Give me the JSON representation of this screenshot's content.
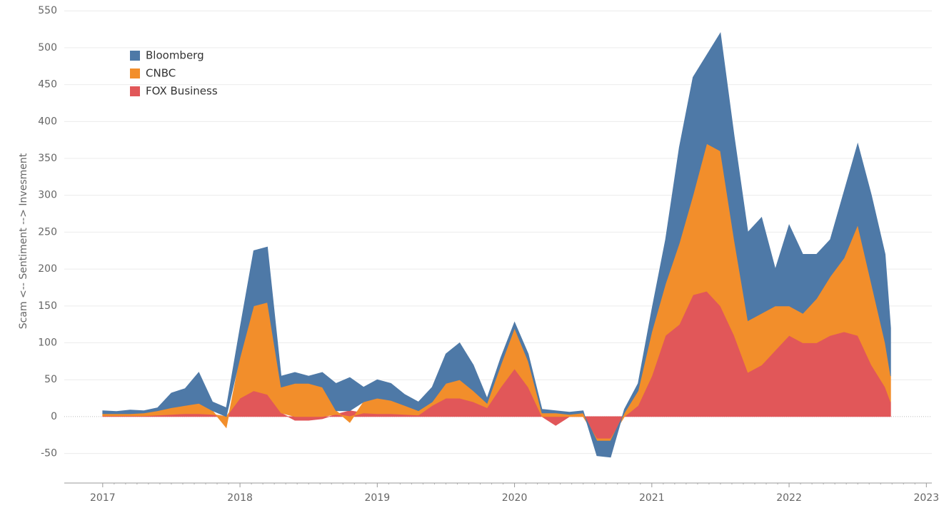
{
  "chart_data": {
    "type": "stacked_area",
    "y_label": "Scam <-- Sentiment --> Invesment",
    "x": [
      2017.0,
      2017.1,
      2017.2,
      2017.3,
      2017.4,
      2017.5,
      2017.6,
      2017.7,
      2017.8,
      2017.9,
      2018.0,
      2018.1,
      2018.2,
      2018.3,
      2018.4,
      2018.5,
      2018.6,
      2018.7,
      2018.8,
      2018.9,
      2019.0,
      2019.1,
      2019.2,
      2019.3,
      2019.4,
      2019.5,
      2019.6,
      2019.7,
      2019.8,
      2019.9,
      2020.0,
      2020.1,
      2020.2,
      2020.3,
      2020.4,
      2020.5,
      2020.6,
      2020.7,
      2020.8,
      2020.9,
      2021.0,
      2021.1,
      2021.2,
      2021.3,
      2021.4,
      2021.5,
      2021.6,
      2021.7,
      2021.8,
      2021.9,
      2022.0,
      2022.1,
      2022.2,
      2022.3,
      2022.4,
      2022.5,
      2022.6,
      2022.7,
      2022.74
    ],
    "series": [
      {
        "name": "Bloomberg",
        "color": "#4e79a7",
        "values": [
          4,
          3,
          5,
          3,
          4,
          20,
          23,
          42,
          12,
          12,
          40,
          75,
          75,
          15,
          15,
          10,
          20,
          37,
          45,
          20,
          25,
          23,
          15,
          12,
          20,
          40,
          50,
          35,
          7,
          10,
          8,
          10,
          5,
          3,
          3,
          3,
          -20,
          -22,
          5,
          10,
          30,
          60,
          130,
          160,
          120,
          160,
          140,
          120,
          130,
          50,
          110,
          80,
          60,
          50,
          90,
          110,
          120,
          120,
          65
        ]
      },
      {
        "name": "CNBC",
        "color": "#f28e2b",
        "values": [
          3,
          3,
          3,
          4,
          6,
          9,
          11,
          14,
          5,
          -15,
          55,
          115,
          125,
          35,
          45,
          45,
          40,
          5,
          -8,
          15,
          21,
          18,
          12,
          6,
          5,
          20,
          25,
          15,
          6,
          30,
          55,
          35,
          5,
          5,
          3,
          5,
          -3,
          -3,
          5,
          20,
          60,
          70,
          110,
          135,
          200,
          210,
          130,
          70,
          70,
          60,
          40,
          40,
          60,
          80,
          100,
          150,
          110,
          60,
          35
        ]
      },
      {
        "name": "FOX Business",
        "color": "#e15759",
        "values": [
          1,
          1,
          1,
          1,
          2,
          3,
          4,
          4,
          3,
          0,
          25,
          35,
          30,
          5,
          -5,
          -5,
          -3,
          3,
          8,
          5,
          4,
          4,
          3,
          2,
          15,
          25,
          25,
          20,
          12,
          40,
          65,
          40,
          0,
          -12,
          0,
          0,
          -30,
          -30,
          0,
          15,
          55,
          110,
          125,
          165,
          170,
          150,
          110,
          60,
          70,
          90,
          110,
          100,
          100,
          110,
          115,
          110,
          70,
          40,
          20
        ]
      }
    ],
    "xlim": [
      2016.72,
      2023.04
    ],
    "xticks": [
      2017,
      2018,
      2019,
      2020,
      2021,
      2022,
      2023
    ],
    "ylim": [
      -90,
      556
    ],
    "yticks": [
      -50,
      0,
      50,
      100,
      150,
      200,
      250,
      300,
      350,
      400,
      450,
      500,
      550
    ],
    "grid": true,
    "legend": "top-left"
  }
}
